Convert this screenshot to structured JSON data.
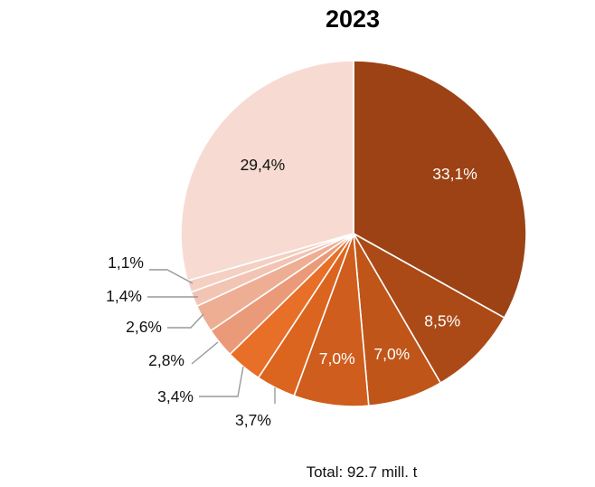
{
  "chart_data": {
    "type": "pie",
    "title": "2023",
    "note": "Total: 92.7 mill. t",
    "slices": [
      {
        "label": "33,1%",
        "value": 33.1,
        "color": "#9c4214"
      },
      {
        "label": "8,5%",
        "value": 8.5,
        "color": "#ab4a16"
      },
      {
        "label": "7,0%",
        "value": 7.0,
        "color": "#bf5519"
      },
      {
        "label": "7,0%",
        "value": 7.0,
        "color": "#cf5d1d"
      },
      {
        "label": "3,7%",
        "value": 3.7,
        "color": "#db651f"
      },
      {
        "label": "3,4%",
        "value": 3.4,
        "color": "#e86f27"
      },
      {
        "label": "2,8%",
        "value": 2.8,
        "color": "#ea9a78"
      },
      {
        "label": "2,6%",
        "value": 2.6,
        "color": "#eeae94"
      },
      {
        "label": "1,4%",
        "value": 1.4,
        "color": "#f2c4b4"
      },
      {
        "label": "1,1%",
        "value": 1.1,
        "color": "#f4d0c3"
      },
      {
        "label": "29,4%",
        "value": 29.4,
        "color": "#f7dbd3"
      }
    ]
  }
}
